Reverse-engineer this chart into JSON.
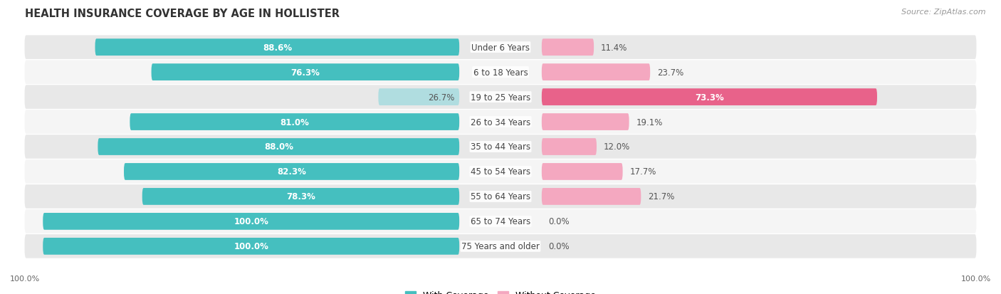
{
  "title": "HEALTH INSURANCE COVERAGE BY AGE IN HOLLISTER",
  "source": "Source: ZipAtlas.com",
  "categories": [
    "Under 6 Years",
    "6 to 18 Years",
    "19 to 25 Years",
    "26 to 34 Years",
    "35 to 44 Years",
    "45 to 54 Years",
    "55 to 64 Years",
    "65 to 74 Years",
    "75 Years and older"
  ],
  "with_coverage": [
    88.6,
    76.3,
    26.7,
    81.0,
    88.0,
    82.3,
    78.3,
    100.0,
    100.0
  ],
  "without_coverage": [
    11.4,
    23.7,
    73.3,
    19.1,
    12.0,
    17.7,
    21.7,
    0.0,
    0.0
  ],
  "color_with": "#45bfbf",
  "color_without_light": "#f4a8c0",
  "color_without_dark": "#e8628a",
  "color_with_light": "#b0dde0",
  "row_bg_dark": "#e8e8e8",
  "row_bg_light": "#f5f5f5",
  "title_fontsize": 10.5,
  "bar_label_fontsize": 8.5,
  "cat_label_fontsize": 8.5,
  "legend_fontsize": 9,
  "source_fontsize": 8,
  "axis_label_fontsize": 8
}
